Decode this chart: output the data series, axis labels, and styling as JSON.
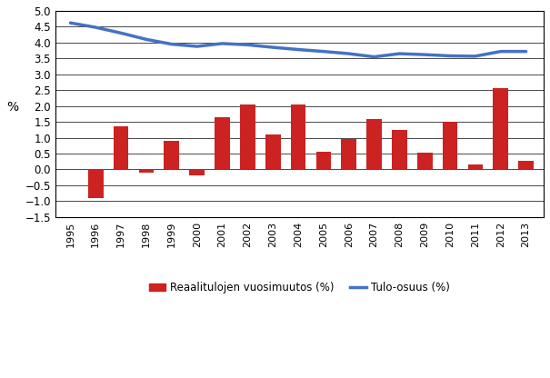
{
  "years": [
    1995,
    1996,
    1997,
    1998,
    1999,
    2000,
    2001,
    2002,
    2003,
    2004,
    2005,
    2006,
    2007,
    2008,
    2009,
    2010,
    2011,
    2012,
    2013
  ],
  "bar_values": [
    0.0,
    -0.9,
    1.35,
    -0.1,
    0.9,
    -0.2,
    1.65,
    2.05,
    1.1,
    2.05,
    0.55,
    0.95,
    1.6,
    1.25,
    0.52,
    1.5,
    0.15,
    2.55,
    0.27
  ],
  "line_values": [
    4.62,
    4.48,
    4.3,
    4.1,
    3.95,
    3.88,
    3.97,
    3.93,
    3.85,
    3.78,
    3.72,
    3.65,
    3.55,
    3.65,
    3.62,
    3.58,
    3.57,
    3.72,
    3.72
  ],
  "bar_color": "#CC2222",
  "line_color": "#4472C4",
  "ylabel": "%",
  "ylim": [
    -1.5,
    5.0
  ],
  "yticks": [
    -1.5,
    -1.0,
    -0.5,
    0.0,
    0.5,
    1.0,
    1.5,
    2.0,
    2.5,
    3.0,
    3.5,
    4.0,
    4.5,
    5.0
  ],
  "legend_bar_label": "Reaalitulojen vuosimuutos (%)",
  "legend_line_label": "Tulo-osuus (%)",
  "background_color": "#ffffff",
  "grid_color": "#000000",
  "spine_color": "#000000"
}
